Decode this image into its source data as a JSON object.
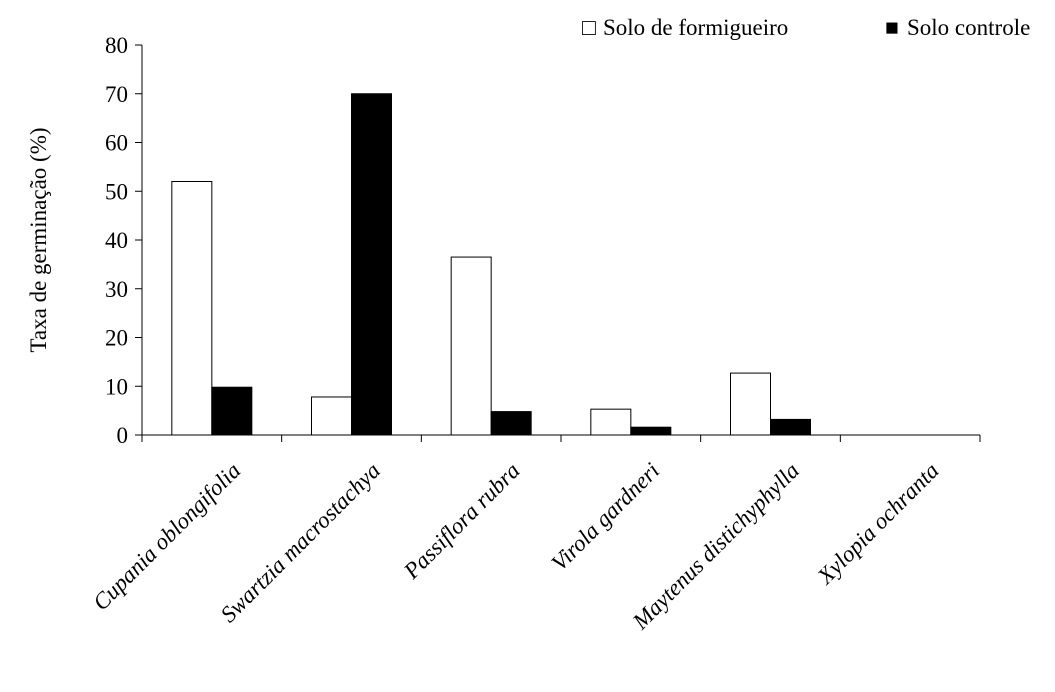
{
  "chart_data": {
    "type": "bar",
    "title": "",
    "xlabel": "",
    "ylabel": "Taxa de germinação (%)",
    "ylim": [
      0,
      80
    ],
    "yticks": [
      "0",
      "10",
      "20",
      "30",
      "40",
      "50",
      "60",
      "70",
      "80"
    ],
    "categories": [
      "Cupania oblongifolia",
      "Swartzia macrostachya",
      "Passiflora rubra",
      "Virola gardneri",
      "Maytenus distichyphylla",
      "Xylopia ochranta"
    ],
    "series": [
      {
        "name": "Solo de formigueiro",
        "values": [
          52,
          7.8,
          36.5,
          5.3,
          12.7,
          0
        ],
        "color": "#ffffff"
      },
      {
        "name": "Solo controle",
        "values": [
          9.8,
          70,
          4.8,
          1.6,
          3.2,
          0
        ],
        "color": "#000000"
      }
    ],
    "grid": false,
    "legend_position": "top-right"
  },
  "legend_marks": [
    "□",
    "■"
  ]
}
